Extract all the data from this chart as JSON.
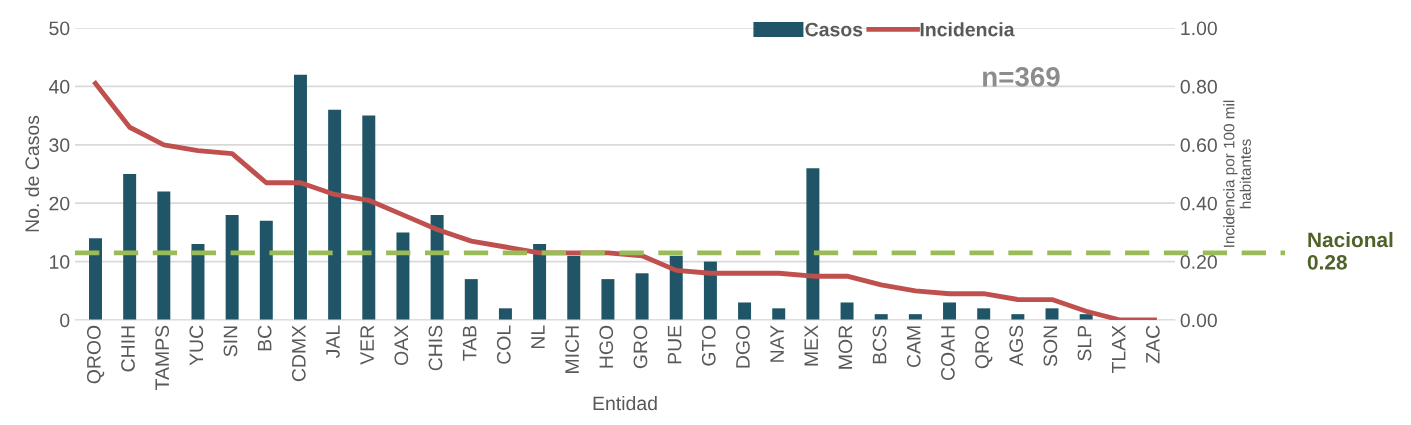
{
  "chart_data": {
    "type": "bar",
    "xlabel": "Entidad",
    "ylabel": "No. de Casos",
    "y2label": "Incidencia por 100 mil\nhabitantes",
    "categories": [
      "QROO",
      "CHIH",
      "TAMPS",
      "YUC",
      "SIN",
      "BC",
      "CDMX",
      "JAL",
      "VER",
      "OAX",
      "CHIS",
      "TAB",
      "COL",
      "NL",
      "MICH",
      "HGO",
      "GRO",
      "PUE",
      "GTO",
      "DGO",
      "NAY",
      "MEX",
      "MOR",
      "BCS",
      "CAM",
      "COAH",
      "QRO",
      "AGS",
      "SON",
      "SLP",
      "TLAX",
      "ZAC"
    ],
    "series": [
      {
        "name": "Casos",
        "color": "#1f5566",
        "values": [
          14,
          25,
          22,
          13,
          18,
          17,
          42,
          36,
          35,
          15,
          18,
          7,
          2,
          13,
          11,
          7,
          8,
          11,
          10,
          3,
          2,
          26,
          3,
          1,
          1,
          3,
          2,
          1,
          2,
          1,
          0,
          0
        ]
      },
      {
        "name": "Incidencia",
        "type": "line",
        "axis": "y2",
        "color": "#c0504d",
        "values": [
          0.81,
          0.66,
          0.6,
          0.58,
          0.57,
          0.47,
          0.47,
          0.43,
          0.41,
          0.36,
          0.31,
          0.27,
          0.25,
          0.23,
          0.23,
          0.23,
          0.22,
          0.17,
          0.16,
          0.16,
          0.16,
          0.15,
          0.15,
          0.12,
          0.1,
          0.09,
          0.09,
          0.07,
          0.07,
          0.03,
          0.0,
          0.0
        ]
      }
    ],
    "ylim": [
      0,
      50
    ],
    "yticks": [
      0,
      10,
      20,
      30,
      40,
      50
    ],
    "y2lim": [
      0,
      1
    ],
    "y2ticks": [
      {
        "value": 0,
        "label": "0.00"
      },
      {
        "value": 0.2,
        "label": "0.20"
      },
      {
        "value": 0.4,
        "label": "0.40"
      },
      {
        "value": 0.6,
        "label": "0.60"
      },
      {
        "value": 0.8,
        "label": "0.80"
      },
      {
        "value": 1,
        "label": "1.00"
      }
    ],
    "ref_lines": [
      {
        "axis": "y2",
        "value": 0.23,
        "label": "Nacional\n0.28",
        "color": "#9bbb59",
        "line_style": "dashed"
      }
    ],
    "annotations": [
      "n=369"
    ],
    "grid": "y",
    "legend": "top right"
  }
}
